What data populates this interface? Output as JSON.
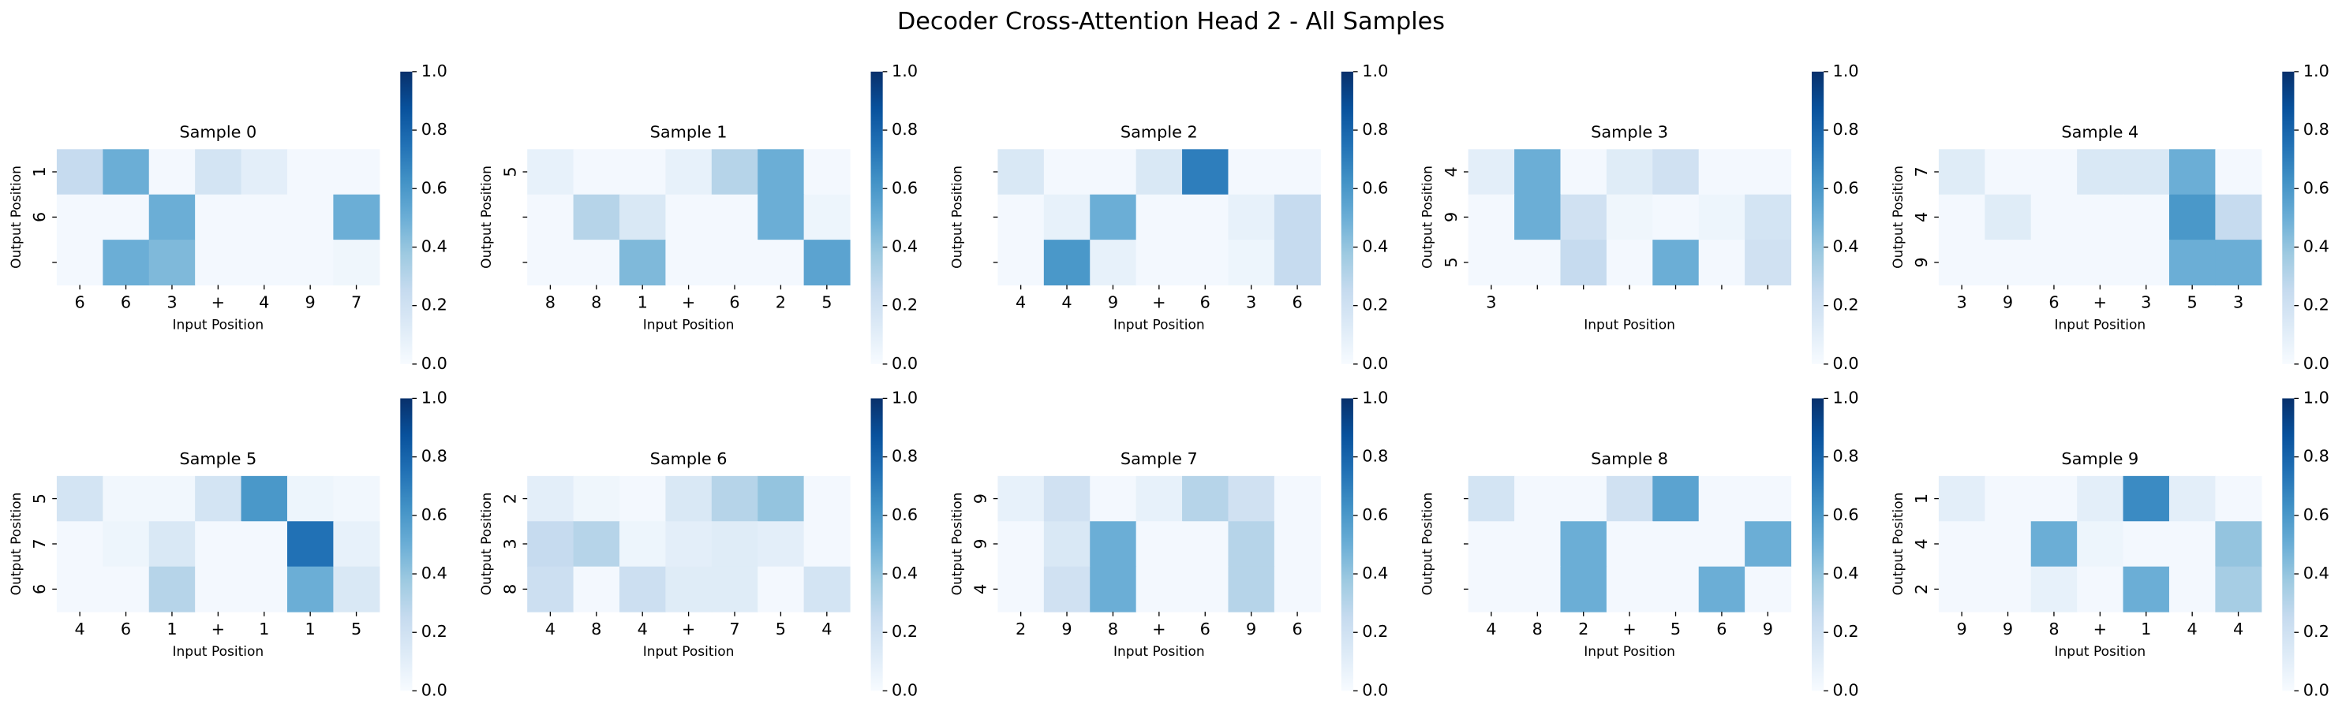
{
  "title": "Decoder Cross-Attention Head 2 - All Samples",
  "chart_data": [
    {
      "type": "heatmap",
      "title": "Sample 0",
      "xlabel": "Input Position",
      "ylabel": "Output Position",
      "cmap": "Blues",
      "x": [
        "6",
        "6",
        "3",
        "+",
        "4",
        "9",
        "7"
      ],
      "y": [
        "1",
        "6",
        null
      ],
      "values": [
        [
          0.25,
          0.5,
          0.02,
          0.18,
          0.1,
          0.02,
          0.02
        ],
        [
          0.02,
          0.02,
          0.5,
          0.02,
          0.02,
          0.02,
          0.5
        ],
        [
          0.02,
          0.5,
          0.45,
          0.02,
          0.02,
          0.02,
          0.04
        ]
      ],
      "clim": [
        0,
        1
      ],
      "cticks": [
        {
          "value": 0,
          "label": "0.0"
        },
        {
          "value": 0.2,
          "label": "0.2"
        },
        {
          "value": 0.4,
          "label": "0.4"
        },
        {
          "value": 0.6,
          "label": "0.6"
        },
        {
          "value": 0.8,
          "label": "0.8"
        },
        {
          "value": 1,
          "label": "1.0"
        }
      ]
    },
    {
      "type": "heatmap",
      "title": "Sample 1",
      "xlabel": "Input Position",
      "ylabel": "Output Position",
      "cmap": "Blues",
      "x": [
        "8",
        "8",
        "1",
        "+",
        "6",
        "2",
        "5"
      ],
      "y": [
        "5",
        null,
        null
      ],
      "values": [
        [
          0.08,
          0.02,
          0.02,
          0.08,
          0.3,
          0.5,
          0.02
        ],
        [
          0.02,
          0.3,
          0.15,
          0.02,
          0.02,
          0.5,
          0.05
        ],
        [
          0.02,
          0.02,
          0.45,
          0.02,
          0.02,
          0.02,
          0.55
        ]
      ],
      "clim": [
        0,
        1
      ],
      "cticks": [
        {
          "value": 0,
          "label": "0.0"
        },
        {
          "value": 0.2,
          "label": "0.2"
        },
        {
          "value": 0.4,
          "label": "0.4"
        },
        {
          "value": 0.6,
          "label": "0.6"
        },
        {
          "value": 0.8,
          "label": "0.8"
        },
        {
          "value": 1,
          "label": "1.0"
        }
      ]
    },
    {
      "type": "heatmap",
      "title": "Sample 2",
      "xlabel": "Input Position",
      "ylabel": "Output Position",
      "cmap": "Blues",
      "x": [
        "4",
        "4",
        "9",
        "+",
        "6",
        "3",
        "6"
      ],
      "y": [
        null,
        null,
        null
      ],
      "values": [
        [
          0.15,
          0.02,
          0.02,
          0.15,
          0.7,
          0.02,
          0.02
        ],
        [
          0.02,
          0.08,
          0.5,
          0.02,
          0.02,
          0.08,
          0.25
        ],
        [
          0.02,
          0.6,
          0.08,
          0.02,
          0.02,
          0.05,
          0.25
        ]
      ],
      "clim": [
        0,
        1
      ],
      "cticks": [
        {
          "value": 0,
          "label": "0.0"
        },
        {
          "value": 0.2,
          "label": "0.2"
        },
        {
          "value": 0.4,
          "label": "0.4"
        },
        {
          "value": 0.6,
          "label": "0.6"
        },
        {
          "value": 0.8,
          "label": "0.8"
        },
        {
          "value": 1,
          "label": "1.0"
        }
      ]
    },
    {
      "type": "heatmap",
      "title": "Sample 3",
      "xlabel": "Input Position",
      "ylabel": "Output Position",
      "cmap": "Blues",
      "x": [
        "3",
        null,
        null,
        null,
        null,
        null,
        null
      ],
      "y": [
        "4",
        "9",
        "5"
      ],
      "values": [
        [
          0.1,
          0.5,
          0.02,
          0.12,
          0.2,
          0.02,
          0.02
        ],
        [
          0.02,
          0.5,
          0.2,
          0.04,
          0.02,
          0.05,
          0.18
        ],
        [
          0.02,
          0.02,
          0.25,
          0.02,
          0.5,
          0.02,
          0.2
        ]
      ],
      "clim": [
        0,
        1
      ],
      "cticks": [
        {
          "value": 0,
          "label": "0.0"
        },
        {
          "value": 0.2,
          "label": "0.2"
        },
        {
          "value": 0.4,
          "label": "0.4"
        },
        {
          "value": 0.6,
          "label": "0.6"
        },
        {
          "value": 0.8,
          "label": "0.8"
        },
        {
          "value": 1,
          "label": "1.0"
        }
      ]
    },
    {
      "type": "heatmap",
      "title": "Sample 4",
      "xlabel": "Input Position",
      "ylabel": "Output Position",
      "cmap": "Blues",
      "x": [
        "3",
        "9",
        "6",
        "+",
        "3",
        "5",
        "3"
      ],
      "y": [
        "7",
        "4",
        "9"
      ],
      "values": [
        [
          0.12,
          0.02,
          0.02,
          0.15,
          0.15,
          0.5,
          0.02
        ],
        [
          0.02,
          0.12,
          0.02,
          0.02,
          0.02,
          0.6,
          0.25
        ],
        [
          0.02,
          0.02,
          0.02,
          0.02,
          0.02,
          0.5,
          0.5
        ]
      ],
      "clim": [
        0,
        1
      ],
      "cticks": [
        {
          "value": 0,
          "label": "0.0"
        },
        {
          "value": 0.2,
          "label": "0.2"
        },
        {
          "value": 0.4,
          "label": "0.4"
        },
        {
          "value": 0.6,
          "label": "0.6"
        },
        {
          "value": 0.8,
          "label": "0.8"
        },
        {
          "value": 1,
          "label": "1.0"
        }
      ]
    },
    {
      "type": "heatmap",
      "title": "Sample 5",
      "xlabel": "Input Position",
      "ylabel": "Output Position",
      "cmap": "Blues",
      "x": [
        "4",
        "6",
        "1",
        "+",
        "1",
        "1",
        "5"
      ],
      "y": [
        "5",
        "7",
        "6"
      ],
      "values": [
        [
          0.18,
          0.03,
          0.03,
          0.18,
          0.6,
          0.05,
          0.03
        ],
        [
          0.02,
          0.05,
          0.15,
          0.02,
          0.02,
          0.75,
          0.08
        ],
        [
          0.02,
          0.02,
          0.3,
          0.02,
          0.02,
          0.5,
          0.15
        ]
      ],
      "clim": [
        0,
        1
      ],
      "cticks": [
        {
          "value": 0,
          "label": "0.0"
        },
        {
          "value": 0.2,
          "label": "0.2"
        },
        {
          "value": 0.4,
          "label": "0.4"
        },
        {
          "value": 0.6,
          "label": "0.6"
        },
        {
          "value": 0.8,
          "label": "0.8"
        },
        {
          "value": 1,
          "label": "1.0"
        }
      ]
    },
    {
      "type": "heatmap",
      "title": "Sample 6",
      "xlabel": "Input Position",
      "ylabel": "Output Position",
      "cmap": "Blues",
      "x": [
        "4",
        "8",
        "4",
        "+",
        "7",
        "5",
        "4"
      ],
      "y": [
        "2",
        "3",
        "8"
      ],
      "values": [
        [
          0.1,
          0.04,
          0.02,
          0.15,
          0.3,
          0.4,
          0.02
        ],
        [
          0.25,
          0.3,
          0.05,
          0.1,
          0.12,
          0.1,
          0.02
        ],
        [
          0.22,
          0.02,
          0.22,
          0.12,
          0.12,
          0.02,
          0.18
        ]
      ],
      "clim": [
        0,
        1
      ],
      "cticks": [
        {
          "value": 0,
          "label": "0.0"
        },
        {
          "value": 0.2,
          "label": "0.2"
        },
        {
          "value": 0.4,
          "label": "0.4"
        },
        {
          "value": 0.6,
          "label": "0.6"
        },
        {
          "value": 0.8,
          "label": "0.8"
        },
        {
          "value": 1,
          "label": "1.0"
        }
      ]
    },
    {
      "type": "heatmap",
      "title": "Sample 7",
      "xlabel": "Input Position",
      "ylabel": "Output Position",
      "cmap": "Blues",
      "x": [
        "2",
        "9",
        "8",
        "+",
        "6",
        "9",
        "6"
      ],
      "y": [
        "9",
        "9",
        "4"
      ],
      "values": [
        [
          0.08,
          0.2,
          0.02,
          0.08,
          0.3,
          0.2,
          0.02
        ],
        [
          0.02,
          0.15,
          0.5,
          0.02,
          0.02,
          0.3,
          0.02
        ],
        [
          0.02,
          0.2,
          0.5,
          0.02,
          0.02,
          0.3,
          0.02
        ]
      ],
      "clim": [
        0,
        1
      ],
      "cticks": [
        {
          "value": 0,
          "label": "0.0"
        },
        {
          "value": 0.2,
          "label": "0.2"
        },
        {
          "value": 0.4,
          "label": "0.4"
        },
        {
          "value": 0.6,
          "label": "0.6"
        },
        {
          "value": 0.8,
          "label": "0.8"
        },
        {
          "value": 1,
          "label": "1.0"
        }
      ]
    },
    {
      "type": "heatmap",
      "title": "Sample 8",
      "xlabel": "Input Position",
      "ylabel": "Output Position",
      "cmap": "Blues",
      "x": [
        "4",
        "8",
        "2",
        "+",
        "5",
        "6",
        "9"
      ],
      "y": [
        null,
        null,
        null
      ],
      "values": [
        [
          0.18,
          0.02,
          0.02,
          0.2,
          0.55,
          0.02,
          0.02
        ],
        [
          0.02,
          0.02,
          0.5,
          0.02,
          0.02,
          0.02,
          0.5
        ],
        [
          0.02,
          0.02,
          0.5,
          0.02,
          0.02,
          0.5,
          0.02
        ]
      ],
      "clim": [
        0,
        1
      ],
      "cticks": [
        {
          "value": 0,
          "label": "0.0"
        },
        {
          "value": 0.2,
          "label": "0.2"
        },
        {
          "value": 0.4,
          "label": "0.4"
        },
        {
          "value": 0.6,
          "label": "0.6"
        },
        {
          "value": 0.8,
          "label": "0.8"
        },
        {
          "value": 1,
          "label": "1.0"
        }
      ]
    },
    {
      "type": "heatmap",
      "title": "Sample 9",
      "xlabel": "Input Position",
      "ylabel": "Output Position",
      "cmap": "Blues",
      "x": [
        "9",
        "9",
        "8",
        "+",
        "1",
        "4",
        "4"
      ],
      "y": [
        "1",
        "4",
        "2"
      ],
      "values": [
        [
          0.1,
          0.02,
          0.02,
          0.1,
          0.65,
          0.1,
          0.02
        ],
        [
          0.02,
          0.02,
          0.5,
          0.05,
          0.02,
          0.02,
          0.4
        ],
        [
          0.02,
          0.02,
          0.08,
          0.02,
          0.5,
          0.02,
          0.35
        ]
      ],
      "clim": [
        0,
        1
      ],
      "cticks": [
        {
          "value": 0,
          "label": "0.0"
        },
        {
          "value": 0.2,
          "label": "0.2"
        },
        {
          "value": 0.4,
          "label": "0.4"
        },
        {
          "value": 0.6,
          "label": "0.6"
        },
        {
          "value": 0.8,
          "label": "0.8"
        },
        {
          "value": 1,
          "label": "1.0"
        }
      ]
    }
  ]
}
